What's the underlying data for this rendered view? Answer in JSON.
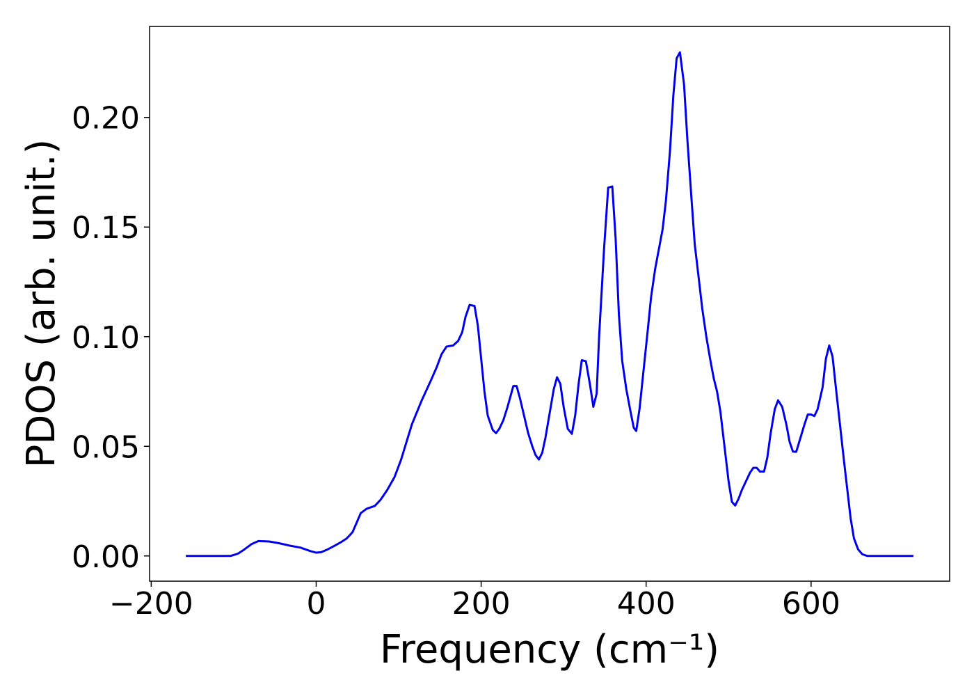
{
  "chart_data": {
    "type": "line",
    "xlabel": "Frequency (cm⁻¹)",
    "ylabel": "PDOS (arb. unit.)",
    "xlim": [
      -202,
      768
    ],
    "ylim": [
      -0.0115,
      0.2415
    ],
    "xticks": [
      {
        "value": -200,
        "label": "−200"
      },
      0,
      200,
      400,
      600
    ],
    "yticks": [
      {
        "value": 0,
        "label": "0.00"
      },
      {
        "value": 0.05,
        "label": "0.05"
      },
      {
        "value": 0.1,
        "label": "0.10"
      },
      0.15,
      {
        "value": 0.2,
        "label": "0.20"
      }
    ],
    "grid": false,
    "series": [
      {
        "color": "#0000ee",
        "x": [
          -158,
          -104,
          -95,
          -87,
          -78,
          -70,
          -57,
          -45,
          -32,
          -19,
          -7,
          0,
          6,
          14,
          23,
          31,
          37,
          44,
          50,
          54,
          61,
          71,
          78,
          86,
          95,
          103,
          116,
          128,
          139,
          146,
          152,
          158,
          166,
          172,
          177,
          181,
          186,
          192,
          196,
          200,
          204,
          208,
          214,
          218,
          222,
          227,
          232,
          239,
          243,
          247,
          252,
          257,
          262,
          266,
          270,
          274,
          278,
          283,
          288,
          292,
          296,
          300,
          305,
          310,
          314,
          318,
          322,
          327,
          332,
          336,
          340,
          343,
          349,
          354,
          359,
          363,
          367,
          371,
          376,
          381,
          385,
          388,
          392,
          397,
          402,
          406,
          411,
          416,
          420,
          424,
          429,
          433,
          437,
          441,
          446,
          450,
          455,
          459,
          464,
          468,
          473,
          478,
          482,
          486,
          490,
          495,
          500,
          504,
          508,
          512,
          516,
          521,
          526,
          530,
          534,
          538,
          543,
          547,
          551,
          556,
          560,
          565,
          570,
          574,
          578,
          582,
          586,
          592,
          596,
          600,
          604,
          608,
          614,
          618,
          622,
          626,
          630,
          635,
          640,
          644,
          648,
          652,
          657,
          662,
          668,
          724
        ],
        "values": [
          0,
          0,
          0.001,
          0.003,
          0.0055,
          0.0068,
          0.0066,
          0.0058,
          0.0047,
          0.0038,
          0.0022,
          0.0015,
          0.0017,
          0.003,
          0.0048,
          0.0065,
          0.008,
          0.0108,
          0.016,
          0.0195,
          0.0215,
          0.0228,
          0.0256,
          0.03,
          0.036,
          0.044,
          0.06,
          0.071,
          0.08,
          0.086,
          0.092,
          0.0955,
          0.096,
          0.098,
          0.102,
          0.109,
          0.1145,
          0.114,
          0.105,
          0.09,
          0.075,
          0.064,
          0.0575,
          0.056,
          0.058,
          0.062,
          0.068,
          0.0775,
          0.0775,
          0.072,
          0.064,
          0.056,
          0.05,
          0.046,
          0.044,
          0.047,
          0.054,
          0.065,
          0.076,
          0.0815,
          0.0785,
          0.068,
          0.058,
          0.0557,
          0.064,
          0.078,
          0.0893,
          0.0888,
          0.078,
          0.068,
          0.074,
          0.1,
          0.14,
          0.168,
          0.1685,
          0.145,
          0.11,
          0.089,
          0.076,
          0.066,
          0.0585,
          0.057,
          0.067,
          0.085,
          0.103,
          0.118,
          0.131,
          0.141,
          0.149,
          0.162,
          0.185,
          0.21,
          0.227,
          0.2297,
          0.215,
          0.19,
          0.163,
          0.142,
          0.126,
          0.113,
          0.1,
          0.089,
          0.081,
          0.075,
          0.066,
          0.05,
          0.034,
          0.0247,
          0.023,
          0.026,
          0.03,
          0.034,
          0.038,
          0.0402,
          0.0402,
          0.0385,
          0.0385,
          0.045,
          0.056,
          0.067,
          0.071,
          0.068,
          0.06,
          0.052,
          0.0476,
          0.0475,
          0.0525,
          0.06,
          0.0645,
          0.0645,
          0.0638,
          0.067,
          0.077,
          0.09,
          0.096,
          0.091,
          0.077,
          0.06,
          0.043,
          0.03,
          0.017,
          0.008,
          0.003,
          0.0008,
          0,
          0
        ]
      }
    ]
  }
}
